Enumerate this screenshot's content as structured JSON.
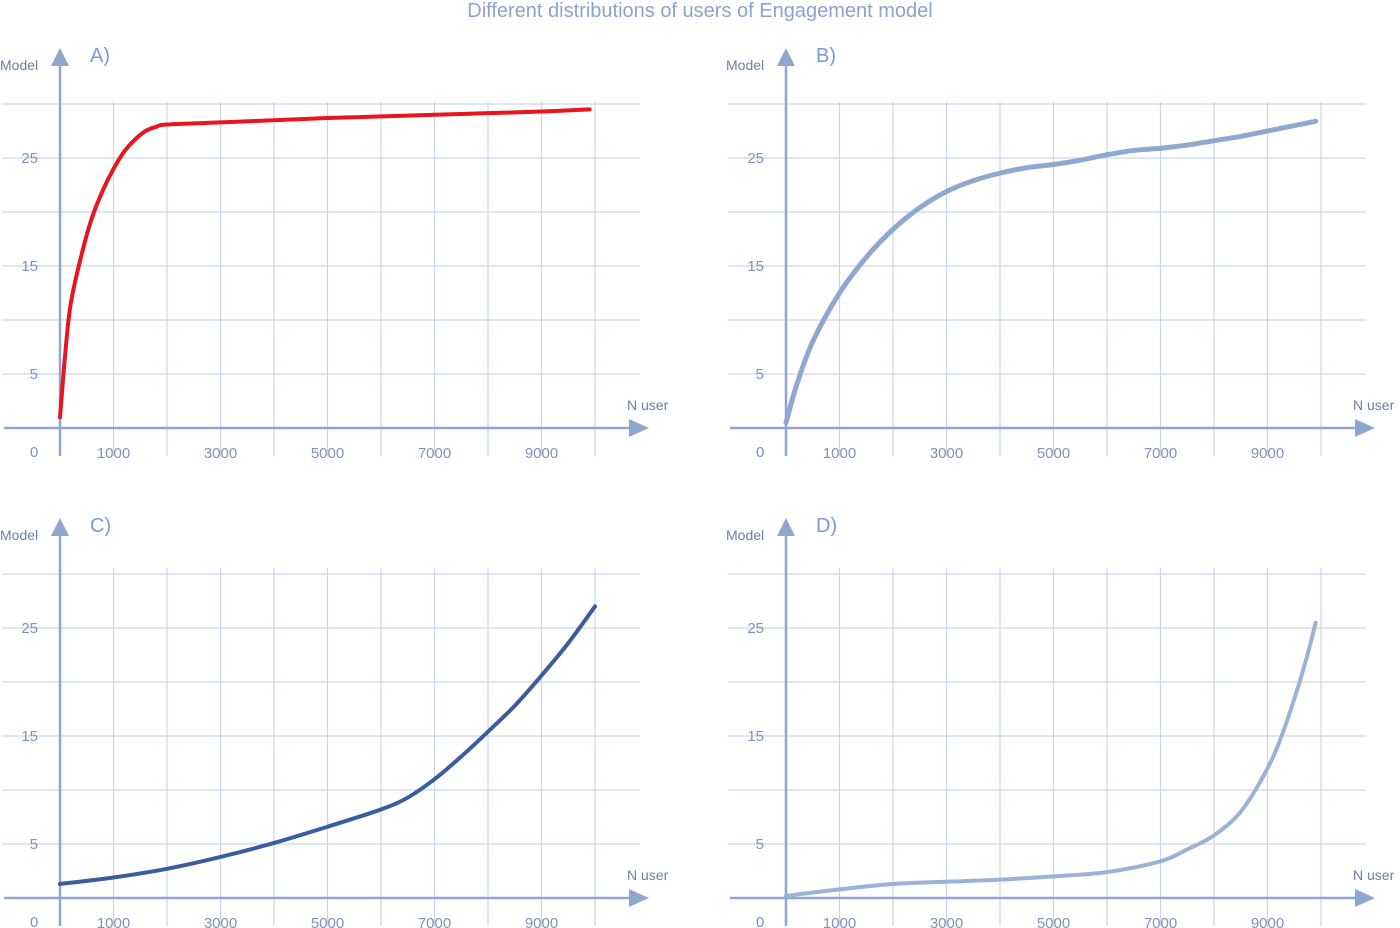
{
  "title": "Different distributions of users of Engagement model",
  "chart_data": [
    {
      "type": "line",
      "panel_label": "A)",
      "xlabel": "N user",
      "ylabel": "Model",
      "xlim": [
        0,
        10500
      ],
      "ylim": [
        0,
        35
      ],
      "x_ticks": [
        1000,
        3000,
        5000,
        7000,
        9000
      ],
      "x_tick_labels": [
        "1000",
        "3000",
        "5000",
        "7000",
        "9000"
      ],
      "y_ticks": [
        5,
        15,
        25
      ],
      "y_tick_labels": [
        "5",
        "15",
        "25"
      ],
      "origin_label": "0",
      "line_color": "#e8141e",
      "line_width": 4,
      "series": [
        {
          "x": [
            0,
            100,
            200,
            400,
            600,
            800,
            1000,
            1200,
            1400,
            1600,
            1800,
            2000,
            3000,
            4000,
            5000,
            6000,
            7000,
            8000,
            9000,
            9900
          ],
          "y": [
            1,
            7,
            11.5,
            16,
            19.5,
            22,
            24,
            25.6,
            26.7,
            27.5,
            27.9,
            28.1,
            28.3,
            28.5,
            28.7,
            28.85,
            29,
            29.15,
            29.3,
            29.5
          ]
        }
      ]
    },
    {
      "type": "line",
      "panel_label": "B)",
      "xlabel": "N user",
      "ylabel": "Model",
      "xlim": [
        0,
        10500
      ],
      "ylim": [
        0,
        35
      ],
      "x_ticks": [
        1000,
        3000,
        5000,
        7000,
        9000
      ],
      "x_tick_labels": [
        "1000",
        "3000",
        "5000",
        "7000",
        "9000"
      ],
      "y_ticks": [
        5,
        15,
        25
      ],
      "y_tick_labels": [
        "5",
        "15",
        "25"
      ],
      "origin_label": "0",
      "line_color": "#8fa8d1",
      "line_width": 5,
      "series": [
        {
          "x": [
            0,
            200,
            500,
            1000,
            1500,
            2000,
            2500,
            3000,
            3500,
            4000,
            4500,
            5000,
            5500,
            6000,
            6500,
            7000,
            7500,
            8000,
            8500,
            9000,
            9500,
            9900
          ],
          "y": [
            0.5,
            4,
            8,
            12.5,
            15.8,
            18.4,
            20.4,
            21.9,
            22.9,
            23.6,
            24.1,
            24.4,
            24.8,
            25.3,
            25.7,
            25.9,
            26.2,
            26.6,
            27,
            27.5,
            28,
            28.4
          ]
        }
      ]
    },
    {
      "type": "line",
      "panel_label": "C)",
      "xlabel": "N user",
      "ylabel": "Model",
      "xlim": [
        0,
        10500
      ],
      "ylim": [
        0,
        35
      ],
      "x_ticks": [
        1000,
        3000,
        5000,
        7000,
        9000
      ],
      "x_tick_labels": [
        "1000",
        "3000",
        "5000",
        "7000",
        "9000"
      ],
      "y_ticks": [
        5,
        15,
        25
      ],
      "y_tick_labels": [
        "5",
        "15",
        "25"
      ],
      "origin_label": "0",
      "line_color": "#3a5d9f",
      "line_width": 4,
      "series": [
        {
          "x": [
            0,
            1000,
            2000,
            3000,
            4000,
            5000,
            6000,
            6500,
            7000,
            7500,
            8000,
            8500,
            9000,
            9500,
            10000
          ],
          "y": [
            1.3,
            1.9,
            2.7,
            3.8,
            5.1,
            6.6,
            8.2,
            9.3,
            11,
            13.1,
            15.4,
            17.8,
            20.6,
            23.6,
            27
          ]
        }
      ]
    },
    {
      "type": "line",
      "panel_label": "D)",
      "xlabel": "N user",
      "ylabel": "Model",
      "xlim": [
        0,
        10500
      ],
      "ylim": [
        0,
        35
      ],
      "x_ticks": [
        1000,
        3000,
        5000,
        7000,
        9000
      ],
      "x_tick_labels": [
        "1000",
        "3000",
        "5000",
        "7000",
        "9000"
      ],
      "y_ticks": [
        5,
        15,
        25
      ],
      "y_tick_labels": [
        "5",
        "15",
        "25"
      ],
      "origin_label": "0",
      "line_color": "#9ab2d8",
      "line_width": 4,
      "series": [
        {
          "x": [
            0,
            1000,
            2000,
            3000,
            4000,
            5000,
            6000,
            7000,
            7500,
            8000,
            8500,
            9000,
            9300,
            9600,
            9800,
            9900
          ],
          "y": [
            0.2,
            0.8,
            1.3,
            1.5,
            1.7,
            2,
            2.4,
            3.4,
            4.5,
            5.8,
            8,
            12,
            15.5,
            20,
            23.5,
            25.5
          ]
        }
      ]
    }
  ]
}
